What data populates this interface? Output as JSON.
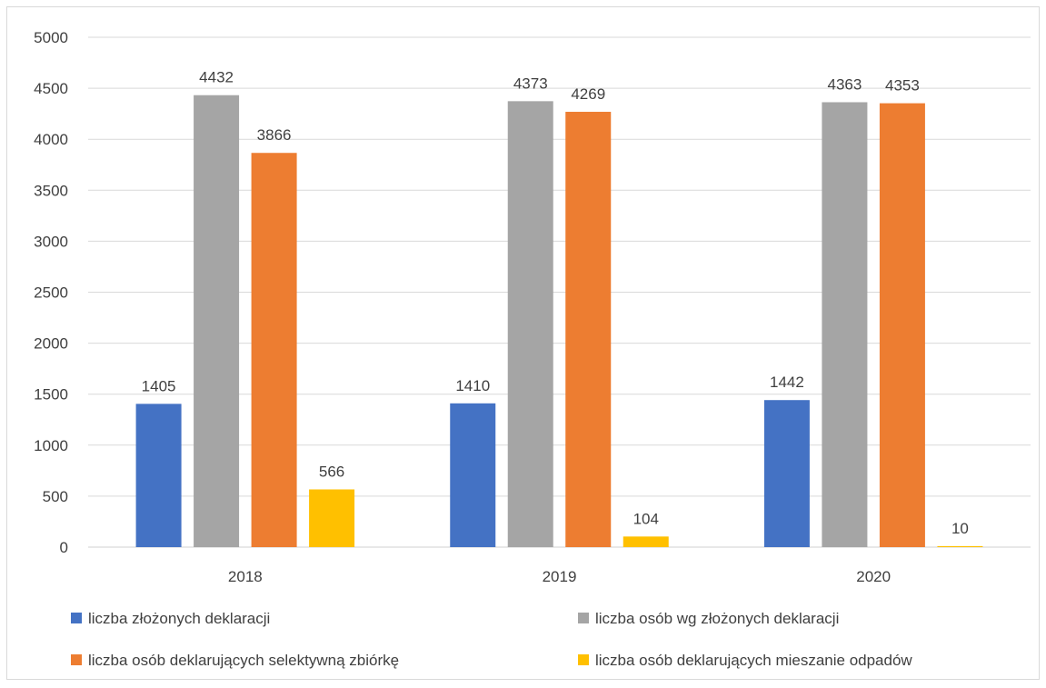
{
  "chart_data": {
    "type": "bar",
    "categories": [
      "2018",
      "2019",
      "2020"
    ],
    "series": [
      {
        "name": "liczba złożonych deklaracji",
        "color": "#4472c4",
        "values": [
          1405,
          1410,
          1442
        ]
      },
      {
        "name": "liczba osób wg złożonych deklaracji",
        "color": "#a5a5a5",
        "values": [
          4432,
          4373,
          4363
        ]
      },
      {
        "name": "liczba osób deklarujących selektywną zbiórkę",
        "color": "#ed7d31",
        "values": [
          3866,
          4269,
          4353
        ]
      },
      {
        "name": "liczba osób deklarujących mieszanie odpadów",
        "color": "#ffc000",
        "values": [
          566,
          104,
          10
        ]
      }
    ],
    "ylim": [
      0,
      5000
    ],
    "yticks": [
      "0",
      "500",
      "1000",
      "1500",
      "2000",
      "2500",
      "3000",
      "3500",
      "4000",
      "4500",
      "5000"
    ],
    "grid": true,
    "legend_position": "bottom",
    "title": "",
    "xlabel": "",
    "ylabel": ""
  }
}
